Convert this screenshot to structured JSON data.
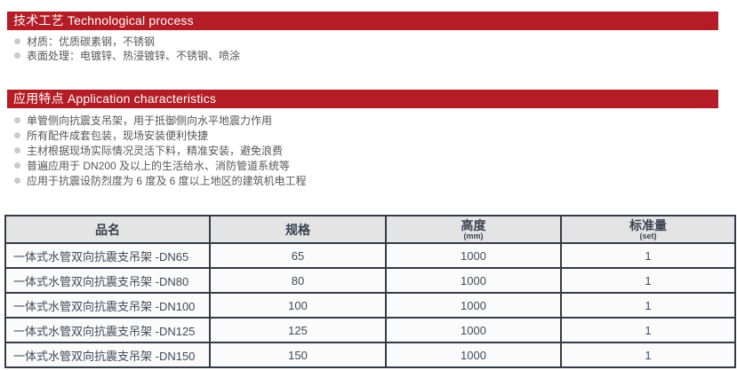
{
  "colors": {
    "accent_red": "#B41D26",
    "table_border": "#333B49",
    "table_header_bg": "#E4E4E4",
    "table_header_text": "#3A4150",
    "table_cell_bg": "#FBFBFB",
    "table_cell_text": "#404859",
    "bullet_text": "#595757",
    "bullet_dot": "#C9CACA"
  },
  "sections": [
    {
      "title": "技术工艺 Technological process",
      "bullets": [
        "材质：优质碳素钢，不锈钢",
        "表面处理：电镀锌、热浸镀锌、不锈钢、喷涂"
      ]
    },
    {
      "title": "应用特点 Application characteristics",
      "bullets": [
        "单管侧向抗震支吊架，用于抵御侧向水平地震力作用",
        "所有配件成套包装，现场安装便利快捷",
        "主材根据现场实际情况灵活下料，精准安装，避免浪费",
        "普遍应用于 DN200 及以上的生活给水、消防管道系统等",
        "应用于抗震设防烈度为 6 度及 6 度以上地区的建筑机电工程"
      ]
    }
  ],
  "table": {
    "columns": [
      {
        "label": "品名",
        "unit": ""
      },
      {
        "label": "规格",
        "unit": ""
      },
      {
        "label": "高度",
        "unit": "(mm)"
      },
      {
        "label": "标准量",
        "unit": "(set)"
      }
    ],
    "rows": [
      [
        "一体式水管双向抗震支吊架 -DN65",
        "65",
        "1000",
        "1"
      ],
      [
        "一体式水管双向抗震支吊架 -DN80",
        "80",
        "1000",
        "1"
      ],
      [
        "一体式水管双向抗震支吊架 -DN100",
        "100",
        "1000",
        "1"
      ],
      [
        "一体式水管双向抗震支吊架 -DN125",
        "125",
        "1000",
        "1"
      ],
      [
        "一体式水管双向抗震支吊架 -DN150",
        "150",
        "1000",
        "1"
      ]
    ]
  }
}
